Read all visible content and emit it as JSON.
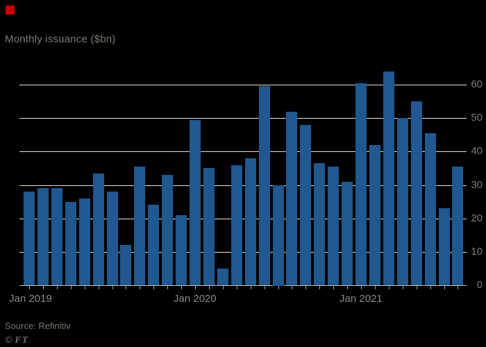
{
  "header": {
    "title": "Monthly issuance ($bn)"
  },
  "footer": {
    "source": "Source: Refinitiv",
    "ft_copyright": "©",
    "ft_letters": "FT"
  },
  "colors": {
    "background": "#000000",
    "red_square": "#cc0000",
    "bar": "#20588f",
    "gridline": "#f0e4d3",
    "baseline": "#c8bcac",
    "tick_mark": "#b3a99b",
    "ytick_text": "#7b7b79",
    "xtick_text": "#8a8a88",
    "title_text": "#817a72",
    "source_text": "#7c766f",
    "ft_text": "#6f6b66"
  },
  "chart_data": {
    "type": "bar",
    "title": "Monthly issuance ($bn)",
    "xlabel": "",
    "ylabel": "Monthly issuance ($bn)",
    "grid": true,
    "ytick_side": "right",
    "ylim": [
      0,
      65
    ],
    "yticks": [
      0,
      10,
      20,
      30,
      40,
      50,
      60
    ],
    "categories": [
      "Jan 2019",
      "Feb 2019",
      "Mar 2019",
      "Apr 2019",
      "May 2019",
      "Jun 2019",
      "Jul 2019",
      "Aug 2019",
      "Sep 2019",
      "Oct 2019",
      "Nov 2019",
      "Dec 2019",
      "Jan 2020",
      "Feb 2020",
      "Mar 2020",
      "Apr 2020",
      "May 2020",
      "Jun 2020",
      "Jul 2020",
      "Aug 2020",
      "Sep 2020",
      "Oct 2020",
      "Nov 2020",
      "Dec 2020",
      "Jan 2021",
      "Feb 2021",
      "Mar 2021",
      "Apr 2021",
      "May 2021",
      "Jun 2021",
      "Jul 2021",
      "Aug 2021"
    ],
    "values": [
      28,
      29,
      29,
      25,
      26,
      33.5,
      28,
      12,
      35.5,
      24,
      33,
      21,
      49.5,
      35,
      5,
      36,
      38,
      59.5,
      30,
      52,
      48,
      36.5,
      35.5,
      31,
      60.5,
      42,
      64,
      50,
      55,
      45.5,
      23,
      35.5
    ],
    "xtick_labels": [
      {
        "label": "Jan 2019",
        "index": 0
      },
      {
        "label": "Jan 2020",
        "index": 12
      },
      {
        "label": "Jan 2021",
        "index": 24
      }
    ]
  }
}
